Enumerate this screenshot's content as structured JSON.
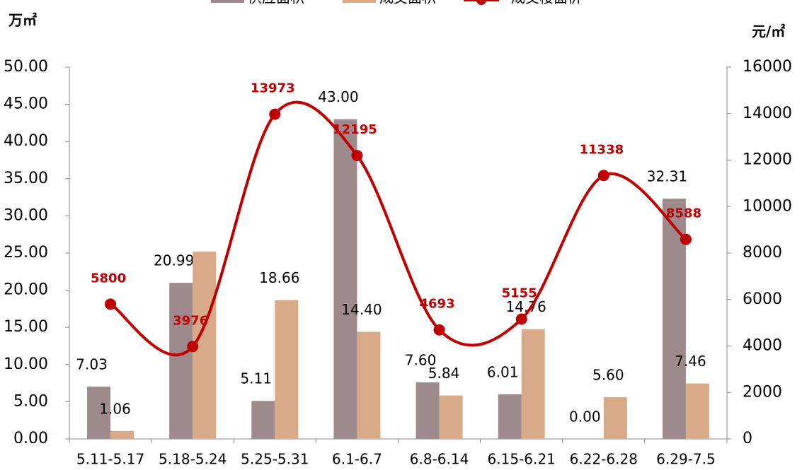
{
  "chart_data": {
    "type": "bar-line",
    "y_label": "万㎡",
    "y2_label": "元/㎡",
    "categories": [
      "5.11-5.17",
      "5.18-5.24",
      "5.25-5.31",
      "6.1-6.7",
      "6.8-6.14",
      "6.15-6.21",
      "6.22-6.28",
      "6.29-7.5"
    ],
    "series": [
      {
        "name": "供应面积",
        "color": "#9e8a8c",
        "values": [
          7.03,
          20.99,
          5.11,
          43.0,
          7.6,
          6.01,
          0.0,
          32.31
        ],
        "value_labels": [
          "7.03",
          "20.99",
          "5.11",
          "43.00",
          "7.60",
          "6.01",
          "0.00",
          "32.31"
        ]
      },
      {
        "name": "成交面积",
        "color": "#d9aa87",
        "values": [
          1.06,
          25.2,
          18.66,
          14.4,
          5.84,
          14.76,
          5.6,
          7.46
        ],
        "value_labels": [
          "1.06",
          null,
          "18.66",
          "14.40",
          "5.84",
          "14.76",
          "5.60",
          "7.46"
        ]
      },
      {
        "name": "成交楼面价",
        "color": "#c00000",
        "axis": "y2",
        "values": [
          5800,
          3976,
          13973,
          12195,
          4693,
          5155,
          11338,
          8588
        ]
      }
    ],
    "ylim": [
      0,
      50
    ],
    "yticks": [
      {
        "value": 0,
        "label": "0.00"
      },
      {
        "value": 5,
        "label": "5.00"
      },
      {
        "value": 10,
        "label": "10.00"
      },
      {
        "value": 15,
        "label": "15.00"
      },
      {
        "value": 20,
        "label": "20.00"
      },
      {
        "value": 25,
        "label": "25.00"
      },
      {
        "value": 30,
        "label": "30.00"
      },
      {
        "value": 35,
        "label": "35.00"
      },
      {
        "value": 40,
        "label": "40.00"
      },
      {
        "value": 45,
        "label": "45.00"
      },
      {
        "value": 50,
        "label": "50.00"
      }
    ],
    "y2lim": [
      0,
      16000
    ],
    "y2ticks": [
      0,
      2000,
      4000,
      6000,
      8000,
      10000,
      12000,
      14000,
      16000
    ]
  }
}
